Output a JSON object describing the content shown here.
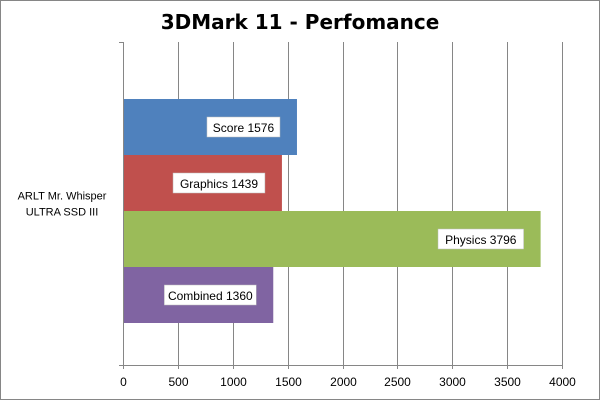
{
  "chart_data": {
    "type": "bar",
    "orientation": "horizontal",
    "title": "3DMark 11 - Perfomance",
    "category": [
      "ARLT Mr. Whisper",
      "ULTRA SSD III"
    ],
    "series": [
      {
        "name": "Score",
        "value": 1576,
        "color": "#4F81BD"
      },
      {
        "name": "Graphics",
        "value": 1439,
        "color": "#C0504D"
      },
      {
        "name": "Physics",
        "value": 3796,
        "color": "#9BBB59"
      },
      {
        "name": "Combined",
        "value": 1360,
        "color": "#8064A2"
      }
    ],
    "xlim": [
      0,
      4000
    ],
    "xticks": [
      0,
      500,
      1000,
      1500,
      2000,
      2500,
      3000,
      3500,
      4000
    ],
    "grid": true,
    "legend": false
  }
}
